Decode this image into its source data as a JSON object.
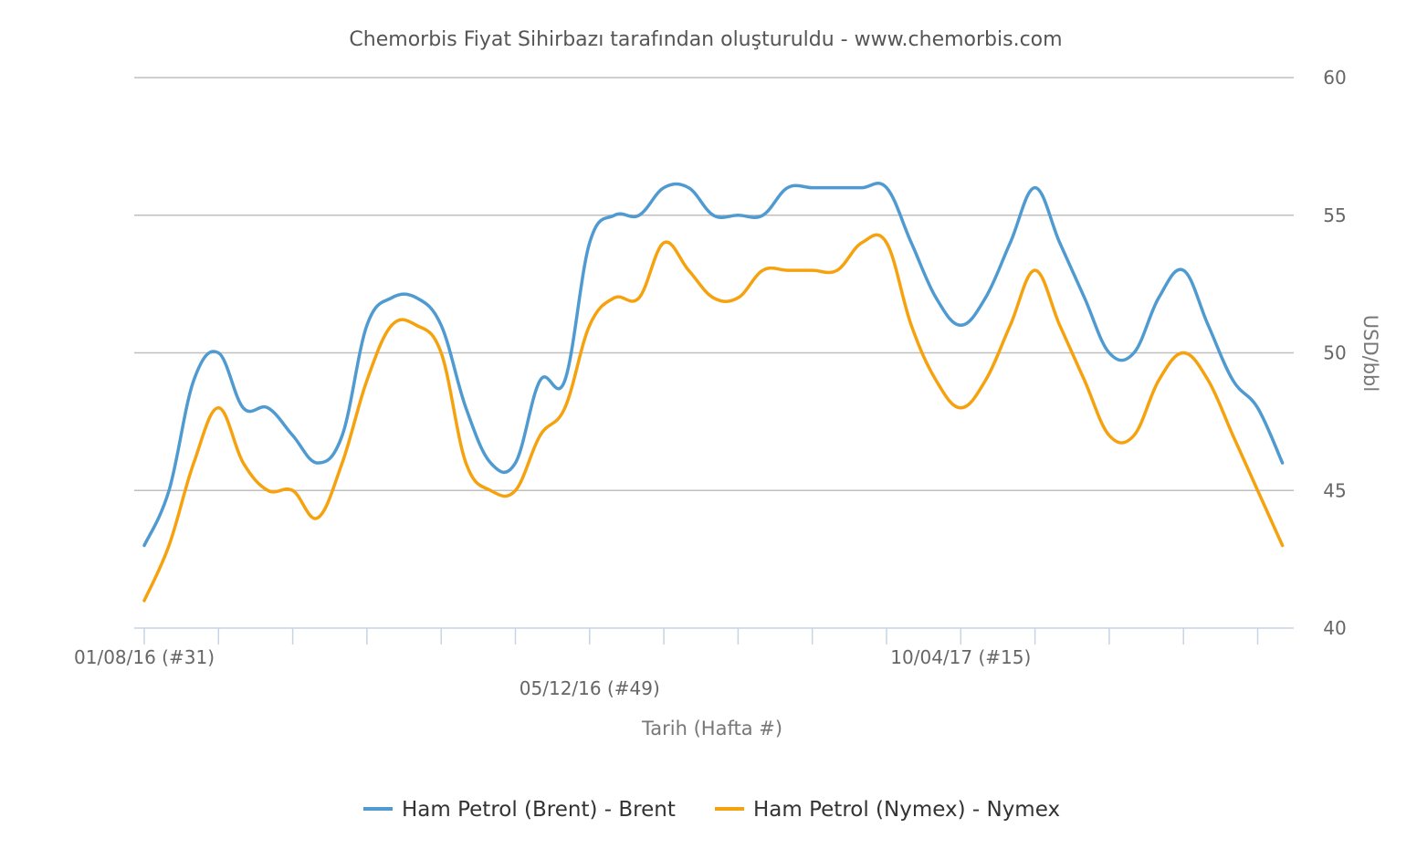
{
  "chart_data": {
    "type": "line",
    "title": "Chemorbis Fiyat Sihirbazı tarafından oluşturuldu - www.chemorbis.com",
    "xlabel": "Tarih (Hafta #)",
    "ylabel": "USD/bbl",
    "y_axis_position": "right",
    "ylim": [
      40,
      60
    ],
    "yticks": [
      40,
      45,
      50,
      55,
      60
    ],
    "grid": true,
    "legend_position": "bottom-center",
    "x_tick_labels": [
      {
        "index": 0,
        "label": "01/08/16 (#31)",
        "row": 1
      },
      {
        "index": 18,
        "label": "05/12/16 (#49)",
        "row": 2
      },
      {
        "index": 33,
        "label": "10/04/17 (#15)",
        "row": 1
      }
    ],
    "num_points": 47,
    "series": [
      {
        "name": "Ham Petrol (Brent) - Brent",
        "color": "#4f9bd1",
        "values": [
          43,
          45,
          49,
          50,
          48,
          48,
          47,
          46,
          47,
          51,
          52,
          52,
          51,
          48,
          46,
          46,
          49,
          49,
          54,
          55,
          55,
          56,
          56,
          55,
          55,
          55,
          56,
          56,
          56,
          56,
          56,
          54,
          52,
          51,
          52,
          54,
          56,
          54,
          52,
          50,
          50,
          52,
          53,
          51,
          49,
          48,
          46
        ]
      },
      {
        "name": "Ham Petrol (Nymex) - Nymex",
        "color": "#f5a20e",
        "values": [
          41,
          43,
          46,
          48,
          46,
          45,
          45,
          44,
          46,
          49,
          51,
          51,
          50,
          46,
          45,
          45,
          47,
          48,
          51,
          52,
          52,
          54,
          53,
          52,
          52,
          53,
          53,
          53,
          53,
          54,
          54,
          51,
          49,
          48,
          49,
          51,
          53,
          51,
          49,
          47,
          47,
          49,
          50,
          49,
          47,
          45,
          43
        ]
      }
    ]
  }
}
